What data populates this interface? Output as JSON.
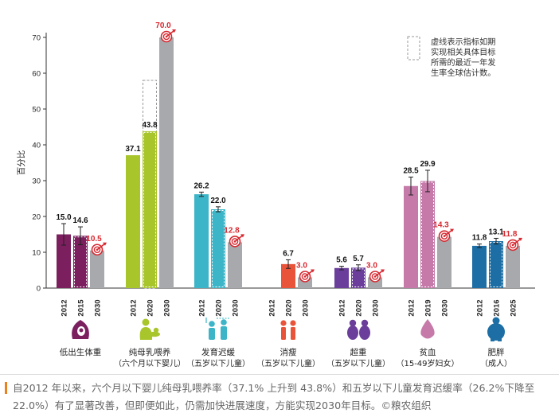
{
  "chart_data": {
    "type": "bar",
    "ylabel": "百分比",
    "ylim": [
      0,
      70
    ],
    "yticks": [
      0,
      10,
      20,
      30,
      40,
      50,
      60,
      70
    ],
    "grid": false,
    "legend": {
      "placement": "top-right",
      "text": "虚线表示指标如期实现相关具体目标所需的最近一年发生率全球估计数。"
    },
    "groups": [
      {
        "key": "low-birth-weight",
        "label": "低出生体重",
        "sublabel": "",
        "color": "#7b1f5e",
        "icon": "pregnant-belly-icon",
        "bars": [
          {
            "year": "2012",
            "value": 15.0,
            "label": "15.0",
            "kind": "actual",
            "err": 3.0
          },
          {
            "year": "2015",
            "value": 14.6,
            "label": "14.6",
            "kind": "actual",
            "err": 2.5
          },
          {
            "year": "2030",
            "value": 10.5,
            "label": "10.5",
            "kind": "target",
            "err": 0
          }
        ]
      },
      {
        "key": "breastfeeding",
        "label": "纯母乳喂养",
        "sublabel": "（六个月以下婴儿）",
        "color": "#a8c62c",
        "icon": "mother-infant-icon",
        "bars": [
          {
            "year": "2012",
            "value": 37.1,
            "label": "37.1",
            "kind": "actual",
            "err": 0
          },
          {
            "year": "2020",
            "value": 43.8,
            "label": "43.8",
            "kind": "actual",
            "err": 0,
            "projection": 58.0
          },
          {
            "year": "2030",
            "value": 70.0,
            "label": "70.0",
            "kind": "target",
            "err": 0
          }
        ]
      },
      {
        "key": "stunting",
        "label": "发育迟缓",
        "sublabel": "（五岁以下儿童）",
        "color": "#3bb5c7",
        "icon": "children-height-icon",
        "bars": [
          {
            "year": "2012",
            "value": 26.2,
            "label": "26.2",
            "kind": "actual",
            "err": 0.6
          },
          {
            "year": "2020",
            "value": 22.0,
            "label": "22.0",
            "kind": "actual",
            "err": 0.7
          },
          {
            "year": "2030",
            "value": 12.8,
            "label": "12.8",
            "kind": "target",
            "err": 0
          }
        ]
      },
      {
        "key": "wasting",
        "label": "消瘦",
        "sublabel": "（五岁以下儿童）",
        "color": "#e9533a",
        "icon": "thin-children-icon",
        "bars": [
          {
            "year": "2012",
            "value": 0,
            "label": "",
            "kind": "none",
            "err": 0
          },
          {
            "year": "2020",
            "value": 6.7,
            "label": "6.7",
            "kind": "actual",
            "err": 1.2
          },
          {
            "year": "2030",
            "value": 3.0,
            "label": "3.0",
            "kind": "target",
            "err": 0
          }
        ]
      },
      {
        "key": "overweight",
        "label": "超重",
        "sublabel": "（五岁以下儿童）",
        "color": "#6a3e9a",
        "icon": "overweight-children-icon",
        "bars": [
          {
            "year": "2012",
            "value": 5.6,
            "label": "5.6",
            "kind": "actual",
            "err": 0.5
          },
          {
            "year": "2020",
            "value": 5.7,
            "label": "5.7",
            "kind": "actual",
            "err": 0.8
          },
          {
            "year": "2030",
            "value": 3.0,
            "label": "3.0",
            "kind": "target",
            "err": 0
          }
        ]
      },
      {
        "key": "anaemia",
        "label": "贫血",
        "sublabel": "（15-49岁妇女）",
        "color": "#c57aa9",
        "icon": "blood-drop-icon",
        "bars": [
          {
            "year": "2012",
            "value": 28.5,
            "label": "28.5",
            "kind": "actual",
            "err": 2.5
          },
          {
            "year": "2019",
            "value": 29.9,
            "label": "29.9",
            "kind": "actual",
            "err": 3.0
          },
          {
            "year": "2030",
            "value": 14.3,
            "label": "14.3",
            "kind": "target",
            "err": 0
          }
        ]
      },
      {
        "key": "obesity",
        "label": "肥胖",
        "sublabel": "（成人）",
        "color": "#1c6ea4",
        "icon": "obese-adult-icon",
        "bars": [
          {
            "year": "2012",
            "value": 11.8,
            "label": "11.8",
            "kind": "actual",
            "err": 0.5
          },
          {
            "year": "2016",
            "value": 13.1,
            "label": "13.1",
            "kind": "actual",
            "err": 0.8
          },
          {
            "year": "2025",
            "value": 11.8,
            "label": "11.8",
            "kind": "target",
            "err": 0
          }
        ]
      }
    ],
    "colors": {
      "target_bar": "#a7a9ac",
      "target_label": "#d7282f",
      "axis": "#333333"
    }
  },
  "caption": {
    "accent": "#e8821e",
    "text": "自2012 年以来，六个月以下婴儿纯母乳喂养率（37.1% 上升到 43.8%）和五岁以下儿童发育迟缓率（26.2%下降至22.0%）有了显著改善，但即便如此，仍需加快进展速度，方能实现2030年目标。©粮农组织"
  }
}
